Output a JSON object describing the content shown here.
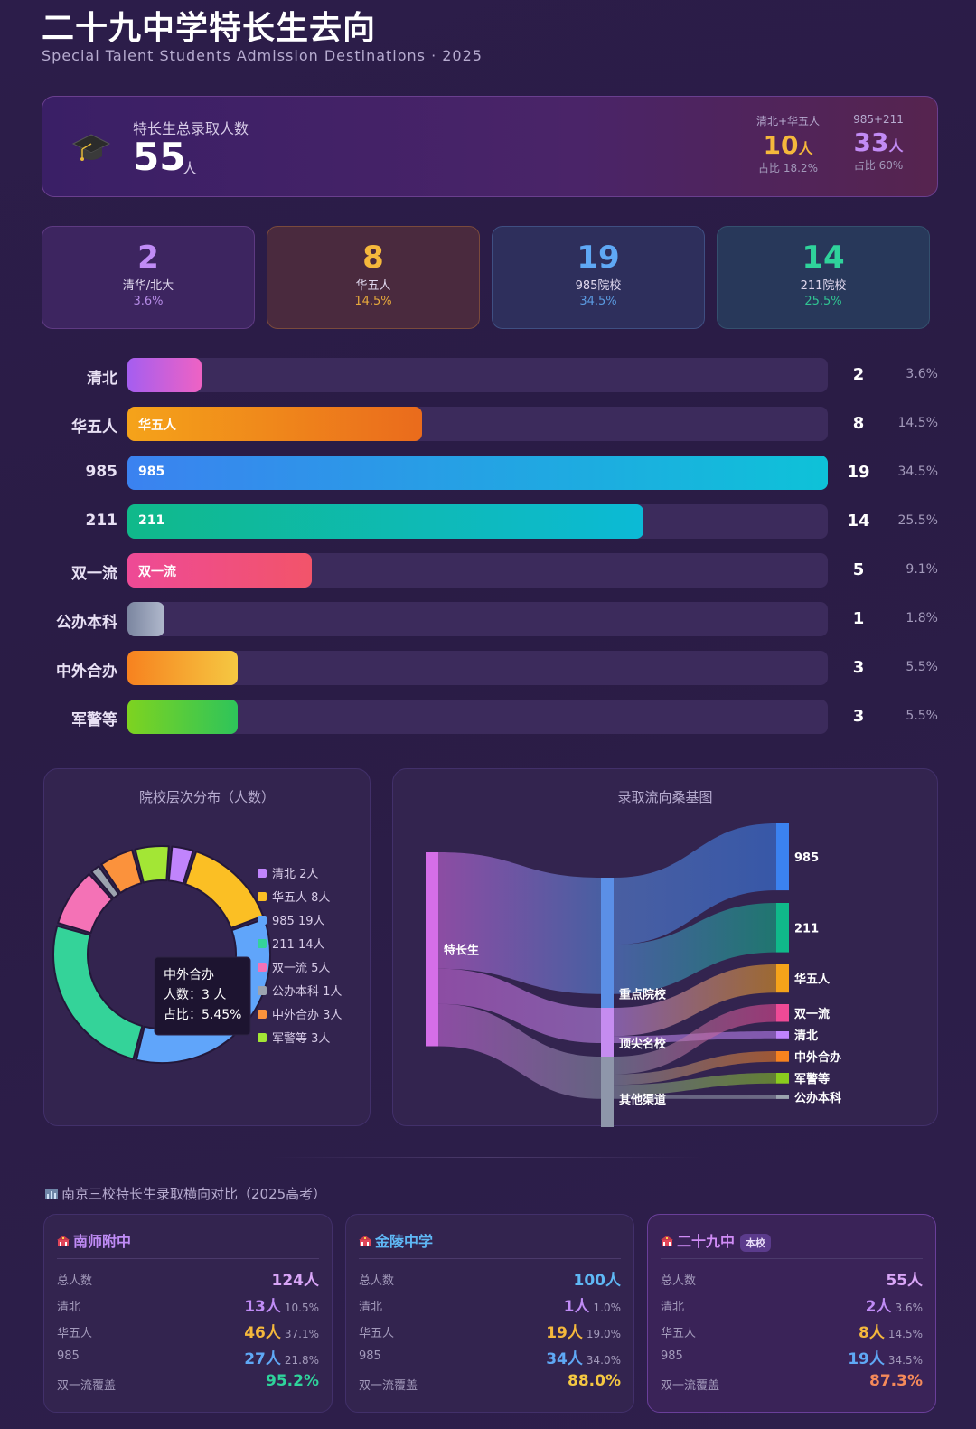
{
  "header": {
    "title": "二十九中学特长生去向",
    "subtitle": "Special Talent Students Admission Destinations · 2025"
  },
  "hero": {
    "label": "特长生总录取人数",
    "total": "55",
    "unit": "人",
    "stats": [
      {
        "head": "清北+华五人",
        "value": "10",
        "unit": "人",
        "pct": "占比 18.2%",
        "color": "#f5b83c"
      },
      {
        "head": "985+211",
        "value": "33",
        "unit": "人",
        "pct": "占比 60%",
        "color": "#c28bf5"
      }
    ]
  },
  "cards": [
    {
      "num": "2",
      "label": "清华/北大",
      "pct": "3.6%",
      "numColor": "#c08cf6",
      "pctColor": "#b58be6",
      "bg": "#3d2560",
      "border": "#5e3a82"
    },
    {
      "num": "8",
      "label": "华五人",
      "pct": "14.5%",
      "numColor": "#f5b83c",
      "pctColor": "#e6a83c",
      "bg": "#4a2a3e",
      "border": "#7a4a3c"
    },
    {
      "num": "19",
      "label": "985院校",
      "pct": "34.5%",
      "numColor": "#5fa8f5",
      "pctColor": "#5b9ae0",
      "bg": "#2e2f5c",
      "border": "#3f4f82"
    },
    {
      "num": "14",
      "label": "211院校",
      "pct": "25.5%",
      "numColor": "#2fd39b",
      "pctColor": "#30c392",
      "bg": "#28385a",
      "border": "#34506e"
    }
  ],
  "chart_data": [
    {
      "type": "bar",
      "orientation": "horizontal",
      "categories": [
        "清北",
        "华五人",
        "985",
        "211",
        "双一流",
        "公办本科",
        "中外合办",
        "军警等"
      ],
      "values": [
        2,
        8,
        19,
        14,
        5,
        1,
        3,
        3
      ],
      "percent_labels": [
        "3.6%",
        "14.5%",
        "34.5%",
        "25.5%",
        "9.1%",
        "1.8%",
        "5.5%",
        "5.5%"
      ],
      "inner_labels": [
        "",
        "华五人",
        "985",
        "211",
        "双一流",
        "",
        "",
        ""
      ],
      "colors": [
        [
          "#a55ef0",
          "#ee62c4"
        ],
        [
          "#f5a31a",
          "#ea6b1c"
        ],
        [
          "#3b82f0",
          "#0ec2d8"
        ],
        [
          "#10b98a",
          "#0cbad6"
        ],
        [
          "#ee4a96",
          "#f2546a"
        ],
        [
          "#7b86a0",
          "#b0b8cc"
        ],
        [
          "#f7821f",
          "#f5c842"
        ],
        [
          "#7ed320",
          "#2ec45a"
        ]
      ],
      "xlim": [
        0,
        19
      ]
    },
    {
      "type": "pie",
      "subtype": "donut",
      "title": "院校层次分布（人数）",
      "labels": [
        "清北",
        "华五人",
        "985",
        "211",
        "双一流",
        "公办本科",
        "中外合办",
        "军警等"
      ],
      "values": [
        2,
        8,
        19,
        14,
        5,
        1,
        3,
        3
      ],
      "colors": [
        "#c084fc",
        "#fbbf24",
        "#60a5fa",
        "#34d399",
        "#f472b6",
        "#9ca3af",
        "#fb923c",
        "#a3e635"
      ],
      "legend_labels": [
        "清北 2人",
        "华五人 8人",
        "985 19人",
        "211 14人",
        "双一流 5人",
        "公办本科 1人",
        "中外合办 3人",
        "军警等 3人"
      ],
      "legend": "right",
      "tooltip": {
        "name": "中外合办",
        "line1": "人数：3 人",
        "line2": "占比：5.45%"
      }
    },
    {
      "type": "sankey",
      "title": "录取流向桑基图",
      "nodes": [
        "特长生",
        "重点院校",
        "顶尖名校",
        "其他渠道",
        "985",
        "211",
        "华五人",
        "双一流",
        "清北",
        "中外合办",
        "军警等",
        "公办本科"
      ],
      "links": [
        {
          "source": "特长生",
          "target": "重点院校",
          "value": 33
        },
        {
          "source": "特长生",
          "target": "顶尖名校",
          "value": 10
        },
        {
          "source": "特长生",
          "target": "其他渠道",
          "value": 12
        },
        {
          "source": "重点院校",
          "target": "985",
          "value": 19
        },
        {
          "source": "重点院校",
          "target": "211",
          "value": 14
        },
        {
          "source": "顶尖名校",
          "target": "华五人",
          "value": 8
        },
        {
          "source": "顶尖名校",
          "target": "清北",
          "value": 2
        },
        {
          "source": "其他渠道",
          "target": "双一流",
          "value": 5
        },
        {
          "source": "其他渠道",
          "target": "中外合办",
          "value": 3
        },
        {
          "source": "其他渠道",
          "target": "军警等",
          "value": 3
        },
        {
          "source": "其他渠道",
          "target": "公办本科",
          "value": 1
        }
      ]
    }
  ],
  "compare": {
    "title": "南京三校特长生录取横向对比（2025高考）",
    "title_icon": "bar-chart-icon",
    "schools": [
      {
        "name": "南师附中",
        "nameColor": "#c08cf6",
        "badge": "",
        "rows": [
          {
            "k": "总人数",
            "v": "124人",
            "p": "",
            "c": "#d9a6f7"
          },
          {
            "k": "清北",
            "v": "13人",
            "p": "10.5%",
            "c": "#c08cf6"
          },
          {
            "k": "华五人",
            "v": "46人",
            "p": "37.1%",
            "c": "#f5b83c"
          },
          {
            "k": "985",
            "v": "27人",
            "p": "21.8%",
            "c": "#5fa8f5"
          },
          {
            "k": "双一流覆盖",
            "v": "95.2%",
            "p": "",
            "c": "#2fd39b"
          }
        ]
      },
      {
        "name": "金陵中学",
        "nameColor": "#5fb8f5",
        "badge": "",
        "rows": [
          {
            "k": "总人数",
            "v": "100人",
            "p": "",
            "c": "#5fb8f5"
          },
          {
            "k": "清北",
            "v": "1人",
            "p": "1.0%",
            "c": "#c08cf6"
          },
          {
            "k": "华五人",
            "v": "19人",
            "p": "19.0%",
            "c": "#f5b83c"
          },
          {
            "k": "985",
            "v": "34人",
            "p": "34.0%",
            "c": "#5fa8f5"
          },
          {
            "k": "双一流覆盖",
            "v": "88.0%",
            "p": "",
            "c": "#f5c842"
          }
        ]
      },
      {
        "name": "二十九中",
        "nameColor": "#d08cf6",
        "badge": "本校",
        "rows": [
          {
            "k": "总人数",
            "v": "55人",
            "p": "",
            "c": "#d9a6f7"
          },
          {
            "k": "清北",
            "v": "2人",
            "p": "3.6%",
            "c": "#c08cf6"
          },
          {
            "k": "华五人",
            "v": "8人",
            "p": "14.5%",
            "c": "#f5b83c"
          },
          {
            "k": "985",
            "v": "19人",
            "p": "34.5%",
            "c": "#5fa8f5"
          },
          {
            "k": "双一流覆盖",
            "v": "87.3%",
            "p": "",
            "c": "#f58a5a"
          }
        ]
      }
    ]
  }
}
